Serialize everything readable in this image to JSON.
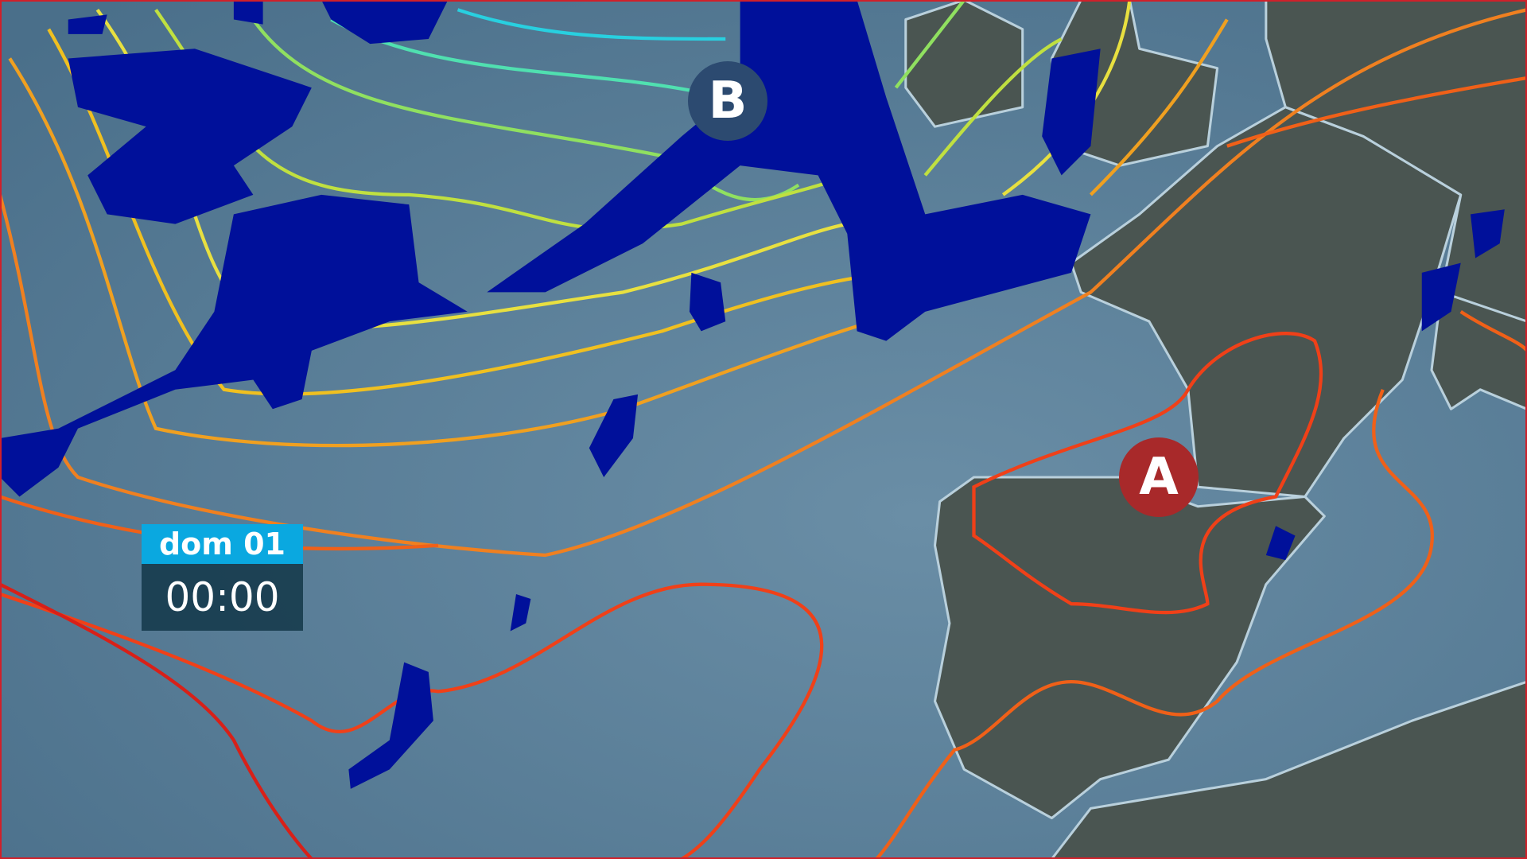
{
  "overlay": {
    "domain_label": "dom 01",
    "time": "00:00"
  },
  "pressure_centers": [
    {
      "letter": "B",
      "meaning": "low",
      "color": "#2c4a70"
    },
    {
      "letter": "A",
      "meaning": "high",
      "color": "#a8292a"
    }
  ],
  "colors": {
    "sea": "#4f7590",
    "land": "#4a5551",
    "precipitation": "#00109a",
    "label_accent": "#0aa8e0",
    "frame": "#d0202a"
  }
}
